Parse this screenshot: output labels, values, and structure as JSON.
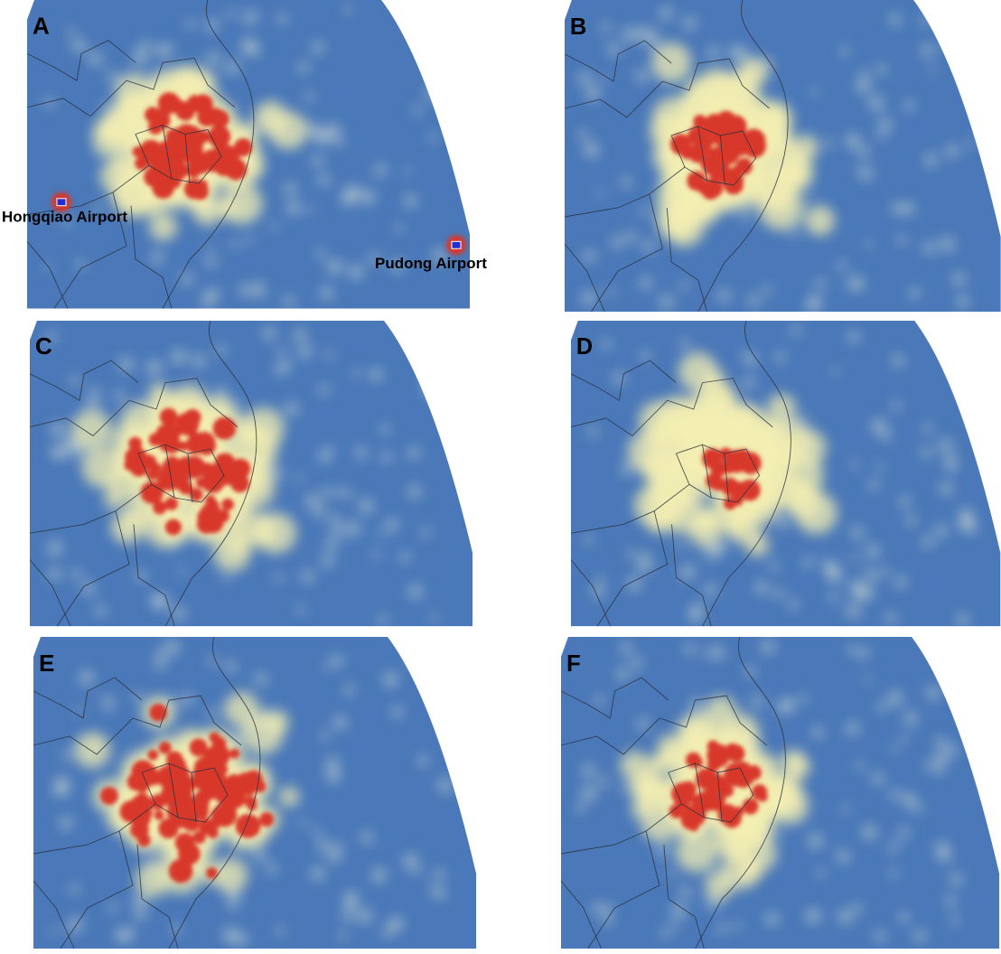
{
  "panels": [
    {
      "label": "A",
      "annotations": [
        "Hongqiao Airport",
        "Pudong Airport"
      ]
    },
    {
      "label": "B"
    },
    {
      "label": "C"
    },
    {
      "label": "D"
    },
    {
      "label": "E"
    },
    {
      "label": "F"
    }
  ]
}
